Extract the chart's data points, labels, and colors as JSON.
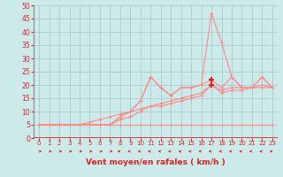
{
  "bg_color": "#cdeaea",
  "grid_color": "#a8cccc",
  "line_color_main": "#ff8888",
  "line_color_dark": "#dd2222",
  "xlabel": "Vent moyen/en rafales ( km/h )",
  "xlim": [
    -0.5,
    23.5
  ],
  "ylim": [
    0,
    50
  ],
  "xticks": [
    0,
    1,
    2,
    3,
    4,
    5,
    6,
    7,
    8,
    9,
    10,
    11,
    12,
    13,
    14,
    15,
    16,
    17,
    18,
    19,
    20,
    21,
    22,
    23
  ],
  "yticks": [
    0,
    5,
    10,
    15,
    20,
    25,
    30,
    35,
    40,
    45,
    50
  ],
  "x": [
    0,
    1,
    2,
    3,
    4,
    5,
    6,
    7,
    8,
    9,
    10,
    11,
    12,
    13,
    14,
    15,
    16,
    17,
    18,
    19,
    20,
    21,
    22,
    23
  ],
  "line1": [
    5,
    5,
    5,
    5,
    5,
    5,
    5,
    5,
    5,
    5,
    5,
    5,
    5,
    5,
    5,
    5,
    5,
    5,
    5,
    5,
    5,
    5,
    5,
    5
  ],
  "line2": [
    5,
    5,
    5,
    5,
    5,
    5,
    5,
    5,
    8,
    10,
    14,
    23,
    19,
    16,
    19,
    19,
    20,
    47,
    36,
    23,
    19,
    19,
    23,
    19
  ],
  "line3": [
    5,
    5,
    5,
    5,
    5,
    5,
    5,
    5,
    8,
    10,
    14,
    23,
    19,
    16,
    19,
    19,
    20,
    22,
    19,
    23,
    19,
    19,
    23,
    19
  ],
  "line4": [
    5,
    5,
    5,
    5,
    5,
    6,
    7,
    8,
    9,
    10,
    11,
    12,
    13,
    14,
    15,
    16,
    17,
    20,
    18,
    19,
    19,
    19,
    20,
    19
  ],
  "line5": [
    5,
    5,
    5,
    5,
    5,
    5,
    5,
    5,
    7,
    8,
    10,
    12,
    12,
    13,
    14,
    15,
    16,
    20,
    17,
    18,
    18,
    19,
    19,
    19
  ],
  "dark_point_x": 17,
  "dark_point_y1": 22,
  "dark_point_y2": 20,
  "arrows_right_x": [
    0,
    1,
    2,
    3,
    4,
    5,
    6,
    7
  ],
  "arrows_left_x": [
    8,
    9,
    10,
    11,
    12,
    13,
    14,
    15,
    16,
    17,
    18,
    19,
    20,
    21,
    22,
    23
  ]
}
